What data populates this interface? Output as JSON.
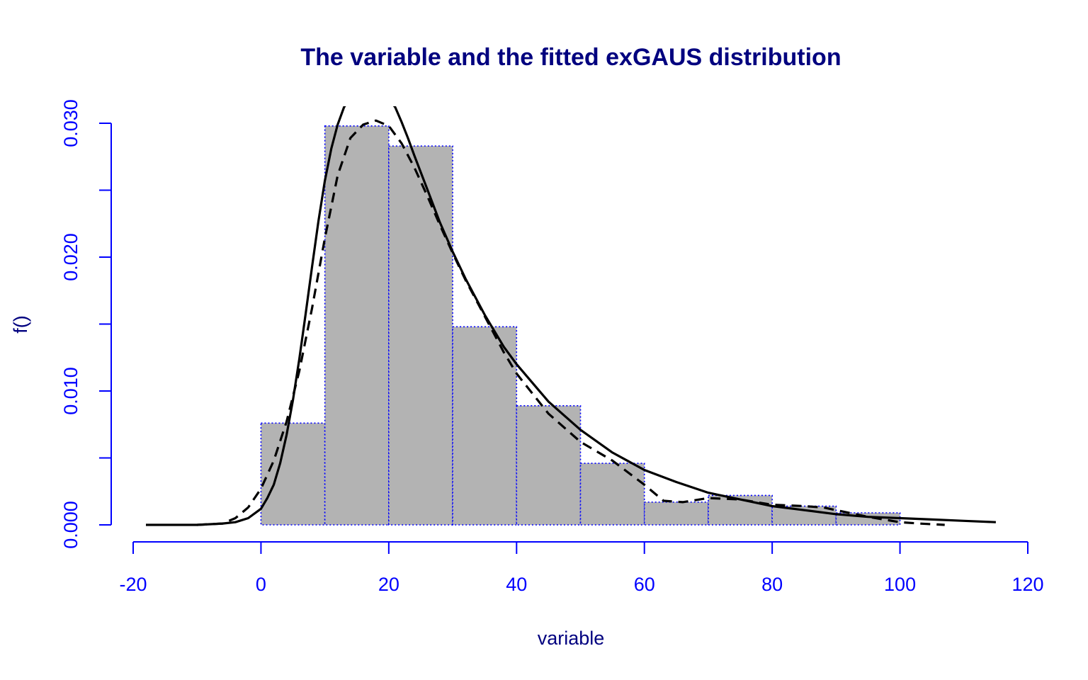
{
  "chart_data": {
    "type": "bar",
    "title": "The variable and the fitted exGAUS distribution",
    "xlabel": "variable",
    "ylabel": "f()",
    "xlim": [
      -20,
      120
    ],
    "ylim": [
      0,
      0.031
    ],
    "x_ticks": [
      -20,
      0,
      20,
      40,
      60,
      80,
      100,
      120
    ],
    "x_tick_labels": [
      "-20",
      "0",
      "20",
      "40",
      "60",
      "80",
      "100",
      "120"
    ],
    "y_ticks": [
      0,
      0.005,
      0.01,
      0.015,
      0.02,
      0.025,
      0.03
    ],
    "y_tick_labels": [
      "0.000",
      "",
      "0.010",
      "",
      "0.020",
      "",
      "0.030"
    ],
    "grid": false,
    "colors": {
      "title": "#00007f",
      "axis": "#0000ff",
      "bar_fill": "#b3b3b3",
      "bar_border": "#0000ff",
      "curve": "#000000"
    },
    "histogram": {
      "bins": [
        {
          "x0": 0,
          "x1": 10,
          "density": 0.0076
        },
        {
          "x0": 10,
          "x1": 20,
          "density": 0.0298
        },
        {
          "x0": 20,
          "x1": 30,
          "density": 0.0283
        },
        {
          "x0": 30,
          "x1": 40,
          "density": 0.0148
        },
        {
          "x0": 40,
          "x1": 50,
          "density": 0.0089
        },
        {
          "x0": 50,
          "x1": 60,
          "density": 0.0046
        },
        {
          "x0": 60,
          "x1": 70,
          "density": 0.0017
        },
        {
          "x0": 70,
          "x1": 80,
          "density": 0.0022
        },
        {
          "x0": 80,
          "x1": 90,
          "density": 0.0014
        },
        {
          "x0": 90,
          "x1": 100,
          "density": 0.0009
        }
      ]
    },
    "series": [
      {
        "style": "solid",
        "x": [
          -18,
          -10,
          -6,
          -4,
          -2,
          0,
          1,
          2,
          3,
          4,
          5,
          6,
          7,
          8,
          9,
          10,
          11,
          12,
          13,
          14,
          15,
          16,
          17,
          18,
          19,
          20,
          21,
          22,
          23,
          24,
          26,
          28,
          30,
          32,
          35,
          38,
          40,
          45,
          50,
          55,
          60,
          65,
          70,
          75,
          80,
          85,
          90,
          95,
          100,
          105,
          110,
          115
        ],
        "y": [
          0,
          0,
          0.0001,
          0.0002,
          0.0005,
          0.0012,
          0.002,
          0.003,
          0.0046,
          0.0067,
          0.0093,
          0.0124,
          0.0158,
          0.0193,
          0.0227,
          0.0257,
          0.0281,
          0.0299,
          0.0312,
          0.0319,
          0.0323,
          0.0324,
          0.0323,
          0.0322,
          0.0321,
          0.0318,
          0.0312,
          0.0301,
          0.0289,
          0.0276,
          0.0251,
          0.0226,
          0.0204,
          0.0184,
          0.0157,
          0.0133,
          0.012,
          0.0092,
          0.0071,
          0.0054,
          0.0041,
          0.0032,
          0.0024,
          0.0019,
          0.0014,
          0.0011,
          0.0008,
          0.0006,
          0.0005,
          0.0004,
          0.0003,
          0.0002
        ]
      },
      {
        "style": "dashed",
        "x": [
          -10,
          -6,
          -4,
          -2,
          0,
          2,
          4,
          6,
          8,
          10,
          12,
          14,
          16,
          18,
          20,
          22,
          24,
          26,
          28,
          30,
          32,
          35,
          38,
          40,
          45,
          50,
          55,
          60,
          63,
          66,
          70,
          75,
          80,
          85,
          88,
          92,
          95,
          100,
          103,
          107
        ],
        "y": [
          0,
          0.0001,
          0.0005,
          0.0013,
          0.0027,
          0.0048,
          0.0077,
          0.0115,
          0.0162,
          0.0214,
          0.0261,
          0.0289,
          0.0299,
          0.0302,
          0.0298,
          0.0285,
          0.0267,
          0.0246,
          0.0224,
          0.0203,
          0.0183,
          0.0156,
          0.0129,
          0.0113,
          0.0083,
          0.0062,
          0.0048,
          0.003,
          0.0018,
          0.0017,
          0.002,
          0.0019,
          0.0015,
          0.0014,
          0.0013,
          0.0009,
          0.0006,
          0.0002,
          0.0001,
          0
        ]
      }
    ]
  }
}
